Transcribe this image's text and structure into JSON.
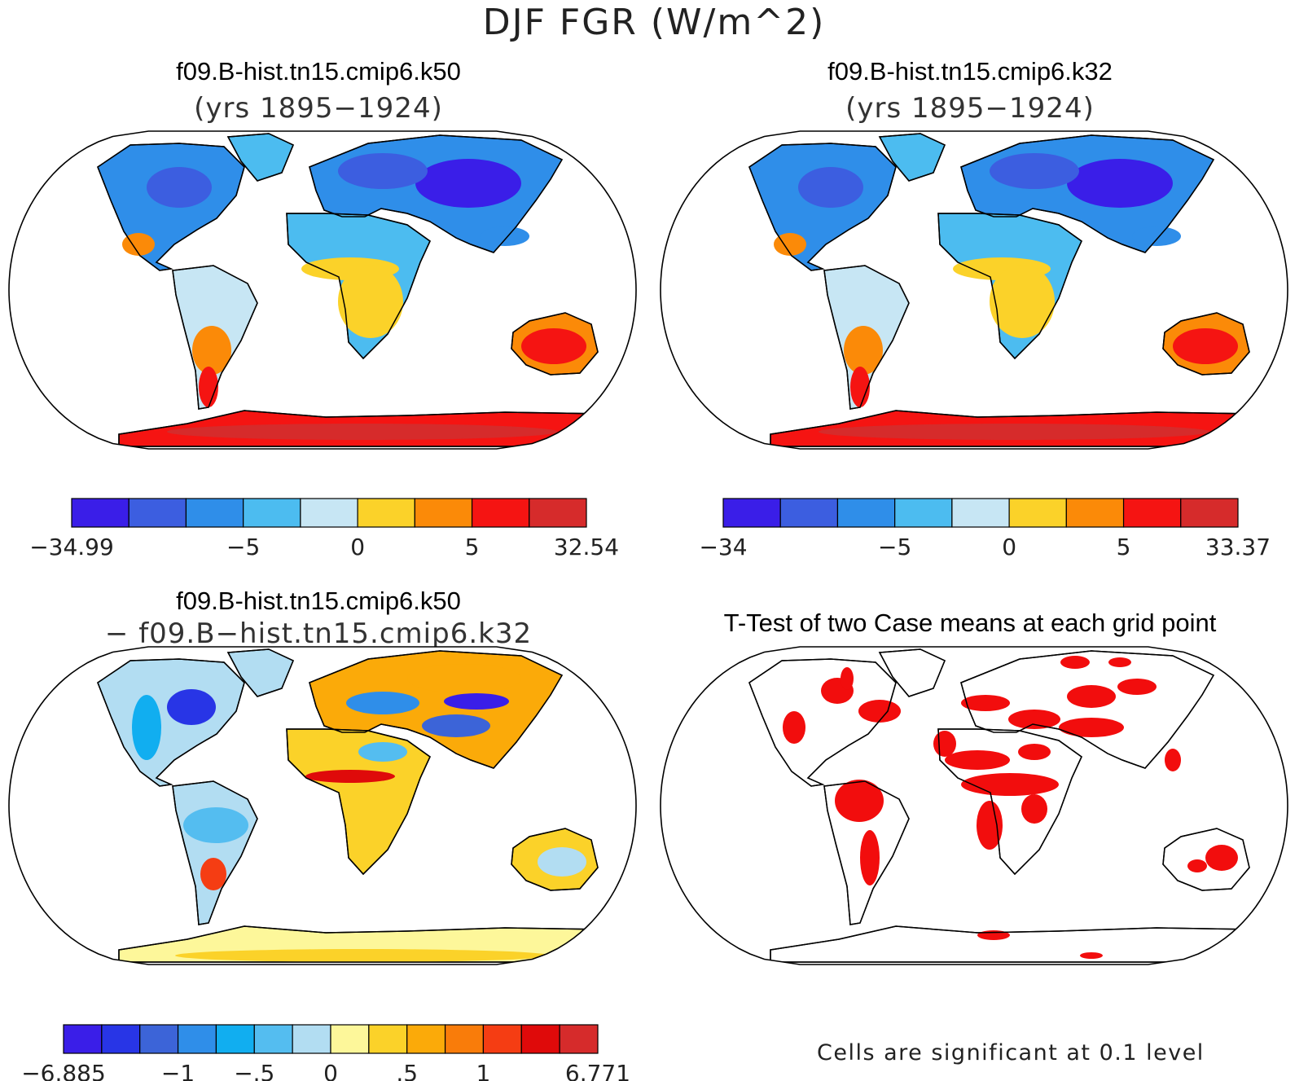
{
  "figure": {
    "title": "DJF FGR (W/m^2)"
  },
  "panels": [
    {
      "title": "f09.B-hist.tn15.cmip6.k50",
      "subtitle": "(yrs 1895−1924)",
      "colorbar": {
        "colors": [
          "#3a1ee8",
          "#3c5ee0",
          "#2f8ee9",
          "#4cbcf0",
          "#c7e6f4",
          "#fbd229",
          "#fb8a08",
          "#f51412",
          "#d62b2b"
        ],
        "labels": [
          "−34.99",
          "−5",
          "0",
          "5",
          "32.54"
        ]
      }
    },
    {
      "title": "f09.B-hist.tn15.cmip6.k32",
      "subtitle": "(yrs 1895−1924)",
      "colorbar": {
        "colors": [
          "#3a1ee8",
          "#3c5ee0",
          "#2f8ee9",
          "#4cbcf0",
          "#c7e6f4",
          "#fbd229",
          "#fb8a08",
          "#f51412",
          "#d62b2b"
        ],
        "labels": [
          "−34",
          "−5",
          "0",
          "5",
          "33.37"
        ]
      }
    },
    {
      "title": "f09.B-hist.tn15.cmip6.k50",
      "subtitle": "− f09.B−hist.tn15.cmip6.k32",
      "colorbar": {
        "colors": [
          "#3a1ee8",
          "#2835e6",
          "#3c64d8",
          "#2f8ee9",
          "#11aef0",
          "#54bdf0",
          "#b2ddf2",
          "#fdf79a",
          "#fbd229",
          "#fbaa09",
          "#f97c0a",
          "#f53d13",
          "#df0a0a",
          "#d62b2b"
        ],
        "labels": [
          "−6.885",
          "−1",
          "−.5",
          "0",
          ".5",
          "1",
          "6.771"
        ]
      }
    },
    {
      "title": "T-Test of two Case means at each grid point",
      "subtitle": "",
      "note": "Cells are significant at 0.1 level"
    }
  ],
  "colors": {
    "frame": "#000000",
    "significant": "#f20d0d"
  }
}
